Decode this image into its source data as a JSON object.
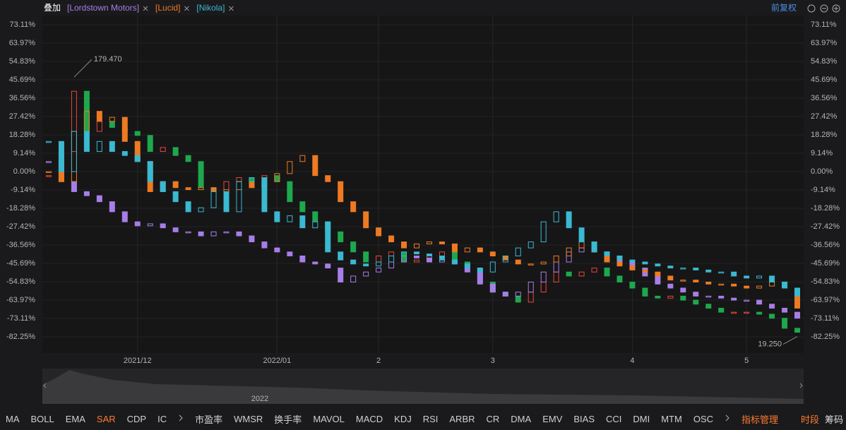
{
  "toolbar": {
    "overlay": "叠加",
    "adjust": "前复权"
  },
  "chart_data": {
    "type": "candlestick",
    "ylim": [
      -82.25,
      73.11
    ],
    "yticks": [
      {
        "value": 73.11,
        "label": "73.11%"
      },
      {
        "value": 63.97,
        "label": "63.97%"
      },
      {
        "value": 54.83,
        "label": "54.83%"
      },
      {
        "value": 45.69,
        "label": "45.69%"
      },
      {
        "value": 36.56,
        "label": "36.56%"
      },
      {
        "value": 27.42,
        "label": "27.42%"
      },
      {
        "value": 18.28,
        "label": "18.28%"
      },
      {
        "value": 9.14,
        "label": "9.14%"
      },
      {
        "value": 0,
        "label": "0.00%"
      },
      {
        "value": -9.14,
        "label": "-9.14%"
      },
      {
        "value": -18.28,
        "label": "-18.28%"
      },
      {
        "value": -27.42,
        "label": "-27.42%"
      },
      {
        "value": -36.56,
        "label": "-36.56%"
      },
      {
        "value": -45.69,
        "label": "-45.69%"
      },
      {
        "value": -54.83,
        "label": "-54.83%"
      },
      {
        "value": -63.97,
        "label": "-63.97%"
      },
      {
        "value": -73.11,
        "label": "-73.11%"
      },
      {
        "value": -82.25,
        "label": "-82.25%"
      }
    ],
    "xlim": [
      -0.5,
      59.5
    ],
    "xticks": [
      {
        "value": 7,
        "label": "2021/12"
      },
      {
        "value": 18,
        "label": "2022/01"
      },
      {
        "value": 26,
        "label": "2"
      },
      {
        "value": 35,
        "label": "3"
      },
      {
        "value": 46,
        "label": "4"
      },
      {
        "value": 55,
        "label": "5"
      }
    ],
    "grid": true,
    "series": [
      {
        "up_color": "#e8473b",
        "down_color": "#1ea84d",
        "values": [
          -2,
          10,
          40,
          20,
          25,
          22,
          20,
          18,
          10,
          12,
          8,
          5,
          -8,
          -10,
          -5,
          -3,
          -8,
          -2,
          -5,
          -15,
          -20,
          -25,
          -30,
          -35,
          -40,
          -45,
          -42,
          -40,
          -45,
          -44,
          -42,
          -40,
          -45,
          -48,
          -55,
          -60,
          -62,
          -65,
          -60,
          -55,
          -50,
          -52,
          -50,
          -48,
          -52,
          -55,
          -58,
          -62,
          -63,
          -62,
          -64,
          -66,
          -68,
          -70,
          -70,
          -70,
          -71,
          -73,
          -78,
          -80
        ]
      },
      {
        "name": "[Lordstown Motors]",
        "color": "#a77ee8",
        "values": [
          5,
          -5,
          -10,
          -12,
          -15,
          -20,
          -25,
          -27,
          -26,
          -28,
          -30,
          -30,
          -32,
          -30,
          -30,
          -32,
          -35,
          -38,
          -40,
          -42,
          -45,
          -46,
          -48,
          -55,
          -52,
          -50,
          -48,
          -45,
          -42,
          -43,
          -45,
          -44,
          -46,
          -50,
          -56,
          -60,
          -62,
          -60,
          -55,
          -50,
          -45,
          -40,
          -38,
          -40,
          -42,
          -45,
          -48,
          -52,
          -56,
          -58,
          -60,
          -62,
          -62,
          -63,
          -64,
          -64,
          -66,
          -68,
          -70,
          -73
        ]
      },
      {
        "name": "[Lucid]",
        "color": "#ee7a22",
        "values": [
          0,
          -5,
          20,
          30,
          25,
          27,
          15,
          5,
          -10,
          -5,
          -8,
          -9,
          -8,
          -10,
          -9,
          -5,
          -8,
          -5,
          -1,
          5,
          8,
          -2,
          -5,
          -15,
          -20,
          -28,
          -32,
          -35,
          -38,
          -36,
          -35,
          -36,
          -40,
          -38,
          -40,
          -42,
          -44,
          -46,
          -46,
          -45,
          -42,
          -38,
          -35,
          -40,
          -45,
          -47,
          -49,
          -50,
          -52,
          -54,
          -54,
          -55,
          -56,
          -56,
          -57,
          -58,
          -57,
          -55,
          -58,
          -68
        ]
      },
      {
        "name": "[Nikola]",
        "color": "#3ab9d0",
        "values": [
          15,
          0,
          20,
          10,
          15,
          10,
          8,
          5,
          -5,
          -10,
          -15,
          -20,
          -18,
          -10,
          -20,
          -5,
          -3,
          -20,
          -25,
          -22,
          -28,
          -25,
          -40,
          -44,
          -46,
          -47,
          -45,
          -42,
          -40,
          -41,
          -42,
          -44,
          -46,
          -48,
          -50,
          -45,
          -42,
          -38,
          -35,
          -25,
          -20,
          -28,
          -35,
          -40,
          -42,
          -44,
          -45,
          -46,
          -47,
          -48,
          -48,
          -49,
          -50,
          -50,
          -52,
          -53,
          -52,
          -55,
          -58,
          -62
        ]
      }
    ],
    "annotations": [
      "179.470",
      "19.250"
    ]
  },
  "navigator": {
    "label": "2022"
  },
  "indicators": [
    "MA",
    "BOLL",
    "EMA",
    "SAR",
    "CDP",
    "IC",
    "市盈率",
    "WMSR",
    "换手率",
    "MAVOL",
    "MACD",
    "KDJ",
    "RSI",
    "ARBR",
    "CR",
    "DMA",
    "EMV",
    "BIAS",
    "CCI",
    "DMI",
    "MTM",
    "OSC"
  ],
  "active_indicator": 3,
  "manage": "指标管理",
  "bottom_right": [
    "时段",
    "筹码"
  ]
}
